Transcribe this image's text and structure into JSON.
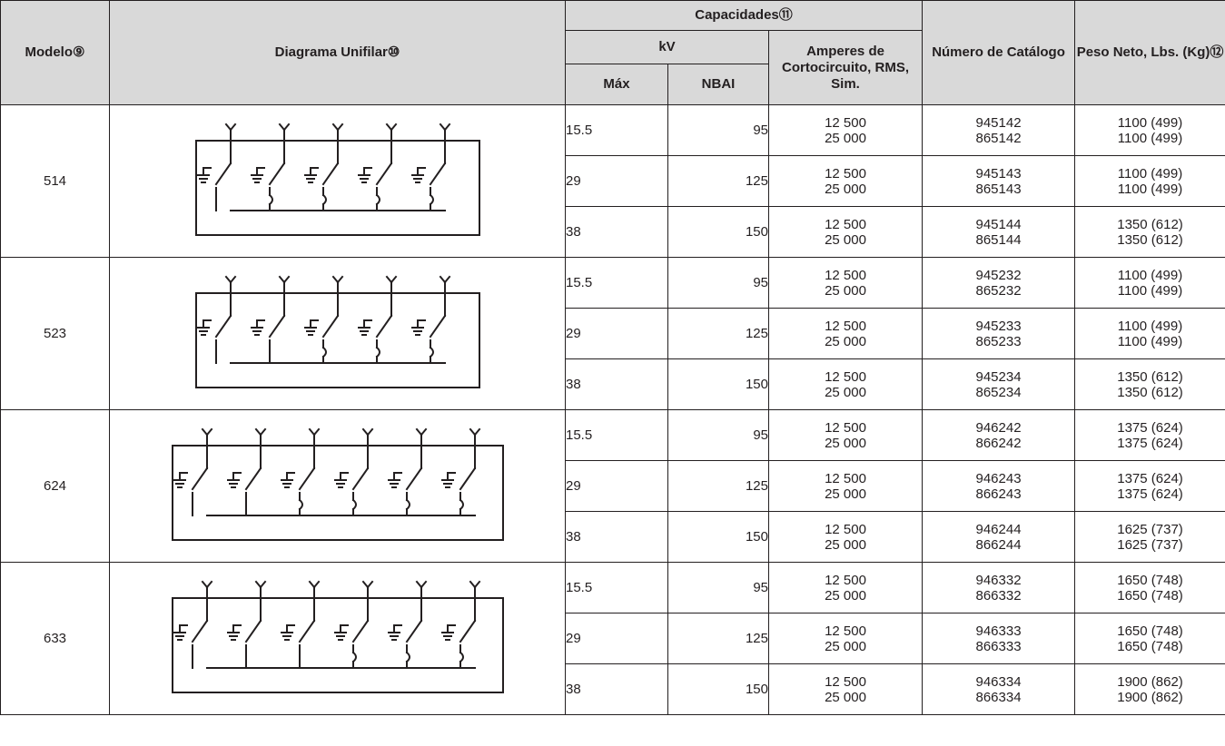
{
  "headers": {
    "model": "Modelo⑨",
    "diagram": "Diagrama Unifilar⑩",
    "capacities": "Capacidades⑪",
    "kv": "kV",
    "max": "Máx",
    "nbai": "NBAI",
    "amps": "Amperes de Cortocircuito, RMS, Sim.",
    "catalog": "Número de Catálogo",
    "weight": "Peso Neto, Lbs. (Kg)⑫"
  },
  "models": [
    {
      "model": "514",
      "ways": 5,
      "buswired": [
        0
      ],
      "rows": [
        {
          "max": "15.5",
          "nbai": "95",
          "amps1": "12 500",
          "amps2": "25 000",
          "cat1": "945142",
          "cat2": "865142",
          "wt1": "1100 (499)",
          "wt2": "1100 (499)"
        },
        {
          "max": "29",
          "nbai": "125",
          "amps1": "12 500",
          "amps2": "25 000",
          "cat1": "945143",
          "cat2": "865143",
          "wt1": "1100 (499)",
          "wt2": "1100 (499)"
        },
        {
          "max": "38",
          "nbai": "150",
          "amps1": "12 500",
          "amps2": "25 000",
          "cat1": "945144",
          "cat2": "865144",
          "wt1": "1350 (612)",
          "wt2": "1350 (612)"
        }
      ]
    },
    {
      "model": "523",
      "ways": 5,
      "buswired": [
        0,
        1
      ],
      "rows": [
        {
          "max": "15.5",
          "nbai": "95",
          "amps1": "12 500",
          "amps2": "25 000",
          "cat1": "945232",
          "cat2": "865232",
          "wt1": "1100 (499)",
          "wt2": "1100 (499)"
        },
        {
          "max": "29",
          "nbai": "125",
          "amps1": "12 500",
          "amps2": "25 000",
          "cat1": "945233",
          "cat2": "865233",
          "wt1": "1100 (499)",
          "wt2": "1100 (499)"
        },
        {
          "max": "38",
          "nbai": "150",
          "amps1": "12 500",
          "amps2": "25 000",
          "cat1": "945234",
          "cat2": "865234",
          "wt1": "1350 (612)",
          "wt2": "1350 (612)"
        }
      ]
    },
    {
      "model": "624",
      "ways": 6,
      "buswired": [
        0,
        1
      ],
      "rows": [
        {
          "max": "15.5",
          "nbai": "95",
          "amps1": "12 500",
          "amps2": "25 000",
          "cat1": "946242",
          "cat2": "866242",
          "wt1": "1375 (624)",
          "wt2": "1375 (624)"
        },
        {
          "max": "29",
          "nbai": "125",
          "amps1": "12 500",
          "amps2": "25 000",
          "cat1": "946243",
          "cat2": "866243",
          "wt1": "1375 (624)",
          "wt2": "1375 (624)"
        },
        {
          "max": "38",
          "nbai": "150",
          "amps1": "12 500",
          "amps2": "25 000",
          "cat1": "946244",
          "cat2": "866244",
          "wt1": "1625 (737)",
          "wt2": "1625 (737)"
        }
      ]
    },
    {
      "model": "633",
      "ways": 6,
      "buswired": [
        0,
        1,
        2
      ],
      "rows": [
        {
          "max": "15.5",
          "nbai": "95",
          "amps1": "12 500",
          "amps2": "25 000",
          "cat1": "946332",
          "cat2": "866332",
          "wt1": "1650 (748)",
          "wt2": "1650 (748)"
        },
        {
          "max": "29",
          "nbai": "125",
          "amps1": "12 500",
          "amps2": "25 000",
          "cat1": "946333",
          "cat2": "866333",
          "wt1": "1650 (748)",
          "wt2": "1650 (748)"
        },
        {
          "max": "38",
          "nbai": "150",
          "amps1": "12 500",
          "amps2": "25 000",
          "cat1": "946334",
          "cat2": "866334",
          "wt1": "1900 (862)",
          "wt2": "1900 (862)"
        }
      ]
    }
  ]
}
